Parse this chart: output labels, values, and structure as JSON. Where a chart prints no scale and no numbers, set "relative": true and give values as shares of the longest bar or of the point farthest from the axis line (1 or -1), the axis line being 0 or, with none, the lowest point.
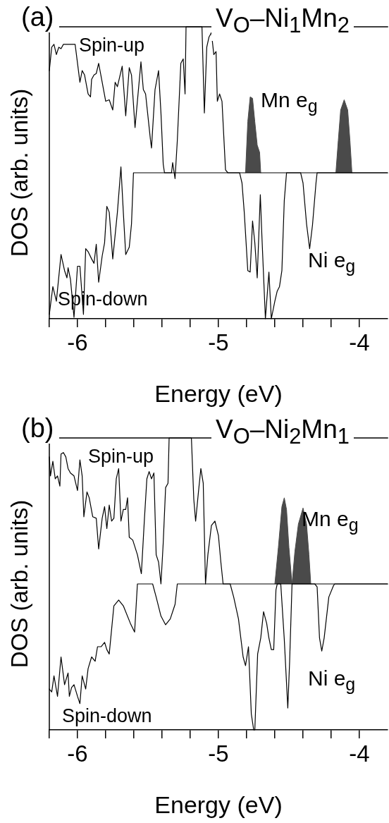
{
  "chart_data": [
    {
      "type": "line",
      "title": "V$_{O}$–Ni$_{1}$Mn$_{2}$",
      "xlabel": "Energy (eV)",
      "ylabel": "DOS (arb. units)",
      "relative": true,
      "grid": false,
      "tick_labels": "x",
      "annotations": [
        "(a)",
        "Spin-up",
        "Spin-down",
        "Mn e$_{g}$",
        "Ni e$_{g}$"
      ],
      "xlim": [
        -6.2,
        -3.8
      ],
      "xticks": [
        {
          "value": -6.2,
          "label": null
        },
        -6,
        {
          "value": -5.8,
          "label": null
        },
        {
          "value": -5.6,
          "label": null
        },
        {
          "value": -5.4,
          "label": null
        },
        {
          "value": -5.2,
          "label": null
        },
        -5,
        {
          "value": -4.8,
          "label": null
        },
        {
          "value": -4.6,
          "label": null
        },
        {
          "value": -4.4,
          "label": null
        },
        {
          "value": -4.2,
          "label": null
        },
        -4
      ],
      "series": [
        {
          "type": "line",
          "color": "#000000",
          "x": [
            -6.2,
            -6.183,
            -6.167,
            -6.15,
            -6.133,
            -6.117,
            -6.1,
            -6.017,
            -5.983,
            -5.967,
            -5.95,
            -5.925,
            -5.908,
            -5.9,
            -5.883,
            -5.867,
            -5.85,
            -5.825,
            -5.8,
            -5.775,
            -5.75,
            -5.733,
            -5.717,
            -5.683,
            -5.658,
            -5.633,
            -5.617,
            -5.592,
            -5.55,
            -5.533,
            -5.517,
            -5.483,
            -5.475,
            -5.45,
            -5.425,
            -5.408,
            -5.392,
            -5.383,
            -5.333,
            -5.325,
            -5.308,
            -5.292,
            -5.267,
            -5.25,
            -5.237,
            -5.23,
            -5.167,
            -5.117,
            -5.1,
            -5.083,
            -5.067,
            -5.05,
            -5.033,
            -5.017,
            -5.008,
            -4.992,
            -4.975,
            -4.95,
            -4.933,
            -3.8
          ],
          "values": [
            0.85,
            0.93,
            0.94,
            0.905,
            0.93,
            0.925,
            0.94,
            0.94,
            0.81,
            0.85,
            0.835,
            0.77,
            0.76,
            0.82,
            0.835,
            0.84,
            0.875,
            0.81,
            0.745,
            0.75,
            0.715,
            0.81,
            0.795,
            0.865,
            0.695,
            0.86,
            0.835,
            0.655,
            0.88,
            0.785,
            0.77,
            0.615,
            0.585,
            0.785,
            0.85,
            0.705,
            0.53,
            0.5,
            0.5,
            0.535,
            0.48,
            0.61,
            0.875,
            0.89,
            0.77,
            1,
            1,
            1,
            0.705,
            0.93,
            0.965,
            0.98,
            0.905,
            0.915,
            0.745,
            0.77,
            0.745,
            0.51,
            0.5,
            0.5
          ]
        },
        {
          "type": "line",
          "color": "#000000",
          "x": [
            -6.2,
            -6.175,
            -6.15,
            -6.117,
            -6.092,
            -6.075,
            -6.067,
            -6.05,
            -6.025,
            -6.0,
            -5.983,
            -5.958,
            -5.942,
            -5.925,
            -5.9,
            -5.883,
            -5.867,
            -5.85,
            -5.825,
            -5.808,
            -5.792,
            -5.775,
            -5.75,
            -5.717,
            -5.692,
            -5.675,
            -5.658,
            -5.633,
            -5.617,
            -5.603,
            -4.85,
            -4.833,
            -4.817,
            -4.792,
            -4.775,
            -4.758,
            -4.742,
            -4.725,
            -4.703,
            -4.692,
            -4.667,
            -4.642,
            -4.625,
            -4.6,
            -4.583,
            -4.567,
            -4.55,
            -4.533,
            -4.517,
            -4.417,
            -4.4,
            -4.375,
            -4.353,
            -4.333,
            -4.308,
            -4.3,
            -3.8
          ],
          "values": [
            0.015,
            0.11,
            0.06,
            0.22,
            0.165,
            0.14,
            0.175,
            0.135,
            0.005,
            0.18,
            0.18,
            0.015,
            0.24,
            0.23,
            0.205,
            0.19,
            0.255,
            0.125,
            0.215,
            0.26,
            0.385,
            0.365,
            0.205,
            0.365,
            0.52,
            0.365,
            0.22,
            0.245,
            0.325,
            0.5,
            0.5,
            0.465,
            0.365,
            0.165,
            0.16,
            0.335,
            0.26,
            0.14,
            0.425,
            0.285,
            0,
            0.16,
            0,
            0.06,
            0.095,
            0.11,
            0.165,
            0.405,
            0.5,
            0.5,
            0.465,
            0.325,
            0.24,
            0.32,
            0.465,
            0.5,
            0.5
          ]
        },
        {
          "type": "area",
          "color": "#4a4a4a",
          "x": [
            -4.808,
            -4.792,
            -4.775,
            -4.758,
            -4.742,
            -4.725,
            -4.708,
            -4.7
          ],
          "values": [
            0.5,
            0.675,
            0.76,
            0.755,
            0.675,
            0.595,
            0.57,
            0.5
          ]
        },
        {
          "type": "area",
          "color": "#4a4a4a",
          "x": [
            -4.167,
            -4.15,
            -4.133,
            -4.108,
            -4.083,
            -4.067,
            -4.053
          ],
          "values": [
            0.5,
            0.61,
            0.715,
            0.75,
            0.715,
            0.61,
            0.5
          ]
        }
      ]
    },
    {
      "type": "line",
      "title": "V$_{O}$–Ni$_{2}$Mn$_{1}$",
      "xlabel": "Energy (eV)",
      "ylabel": "DOS (arb. units)",
      "relative": true,
      "grid": false,
      "tick_labels": "x",
      "annotations": [
        "(b)",
        "Spin-up",
        "Spin-down",
        "Mn e$_{g}$",
        "Ni e$_{g}$"
      ],
      "xlim": [
        -6.2,
        -3.8
      ],
      "xticks": [
        {
          "value": -6.2,
          "label": null
        },
        -6,
        {
          "value": -5.8,
          "label": null
        },
        {
          "value": -5.6,
          "label": null
        },
        {
          "value": -5.4,
          "label": null
        },
        {
          "value": -5.2,
          "label": null
        },
        -5,
        {
          "value": -4.8,
          "label": null
        },
        {
          "value": -4.6,
          "label": null
        },
        {
          "value": -4.4,
          "label": null
        },
        {
          "value": -4.2,
          "label": null
        },
        -4
      ],
      "series": [
        {
          "type": "line",
          "color": "#000000",
          "x": [
            -6.2,
            -6.192,
            -6.175,
            -6.158,
            -6.142,
            -6.125,
            -6.117,
            -6.1,
            -6.083,
            -6.067,
            -6.05,
            -6.025,
            -6.0,
            -5.983,
            -5.967,
            -5.955,
            -5.933,
            -5.917,
            -5.892,
            -5.867,
            -5.85,
            -5.825,
            -5.808,
            -5.792,
            -5.775,
            -5.758,
            -5.742,
            -5.725,
            -5.708,
            -5.692,
            -5.675,
            -5.658,
            -5.645,
            -5.633,
            -5.608,
            -5.575,
            -5.547,
            -5.525,
            -5.508,
            -5.492,
            -5.475,
            -5.458,
            -5.442,
            -5.425,
            -5.408,
            -5.392,
            -5.375,
            -5.358,
            -5.35,
            -5.208,
            -5.192,
            -5.175,
            -5.162,
            -5.142,
            -5.125,
            -5.108,
            -5.092,
            -5.075,
            -5.05,
            -5.025,
            -5.0,
            -4.983,
            -4.967,
            -3.8
          ],
          "values": [
            0.935,
            0.87,
            0.92,
            0.86,
            0.87,
            0.835,
            0.945,
            0.95,
            0.935,
            0.895,
            0.88,
            0.87,
            0.82,
            0.925,
            0.87,
            0.73,
            0.815,
            0.795,
            0.73,
            0.725,
            0.62,
            0.725,
            0.765,
            0.69,
            0.77,
            0.715,
            0.725,
            0.86,
            0.895,
            0.715,
            0.755,
            0.755,
            0.795,
            0.66,
            0.65,
            0.6,
            0.535,
            0.725,
            0.86,
            0.885,
            0.86,
            0.88,
            0.6,
            0.575,
            0.5,
            0.64,
            0.83,
            0.845,
            1,
            1,
            1,
            0.79,
            0.715,
            0.815,
            0.895,
            0.845,
            0.5,
            0.6,
            0.7,
            0.715,
            0.665,
            0.575,
            0.5,
            0.5
          ]
        },
        {
          "type": "line",
          "color": "#000000",
          "x": [
            -6.2,
            -6.183,
            -6.167,
            -6.142,
            -6.117,
            -6.092,
            -6.067,
            -6.058,
            -6.042,
            -6.025,
            -6.0,
            -5.983,
            -5.967,
            -5.942,
            -5.925,
            -5.9,
            -5.875,
            -5.858,
            -5.833,
            -5.808,
            -5.792,
            -5.775,
            -5.742,
            -5.708,
            -5.675,
            -5.625,
            -5.595,
            -5.575,
            -5.467,
            -5.442,
            -5.408,
            -5.375,
            -5.342,
            -5.308,
            -5.292,
            -4.917,
            -4.892,
            -4.858,
            -4.825,
            -4.808,
            -4.787,
            -4.767,
            -4.75,
            -4.742,
            -4.722,
            -4.7,
            -4.68,
            -4.658,
            -4.642,
            -4.625,
            -4.608,
            -4.592,
            -4.583,
            -4.558,
            -4.533,
            -4.508,
            -4.495,
            -4.478,
            -4.317,
            -4.3,
            -4.283,
            -4.267,
            -4.25,
            -4.217,
            -4.183,
            -4.175,
            -3.8
          ],
          "values": [
            0.14,
            0.13,
            0.185,
            0.115,
            0.25,
            0.155,
            0.195,
            0.115,
            0.145,
            0.155,
            0.115,
            0.09,
            0.185,
            0.14,
            0.21,
            0.25,
            0.235,
            0.285,
            0.285,
            0.3,
            0.275,
            0.26,
            0.425,
            0.445,
            0.425,
            0.365,
            0.335,
            0.5,
            0.5,
            0.455,
            0.39,
            0.36,
            0.38,
            0.43,
            0.5,
            0.5,
            0.455,
            0.38,
            0.25,
            0.22,
            0.285,
            0.055,
            0,
            0,
            0.26,
            0.315,
            0.405,
            0.365,
            0.315,
            0.275,
            0.275,
            0.48,
            0.5,
            0.5,
            0.31,
            0.075,
            0.235,
            0.5,
            0.5,
            0.49,
            0.315,
            0.27,
            0.315,
            0.455,
            0.495,
            0.5,
            0.5
          ]
        },
        {
          "type": "area",
          "color": "#4a4a4a",
          "x": [
            -4.6,
            -4.575,
            -4.55,
            -4.533,
            -4.517,
            -4.5,
            -4.478
          ],
          "values": [
            0.5,
            0.625,
            0.765,
            0.795,
            0.755,
            0.625,
            0.5
          ]
        },
        {
          "type": "area",
          "color": "#4a4a4a",
          "x": [
            -4.478,
            -4.458,
            -4.433,
            -4.4,
            -4.375,
            -4.358,
            -4.345
          ],
          "values": [
            0.5,
            0.61,
            0.705,
            0.76,
            0.705,
            0.6,
            0.5
          ]
        }
      ]
    }
  ]
}
